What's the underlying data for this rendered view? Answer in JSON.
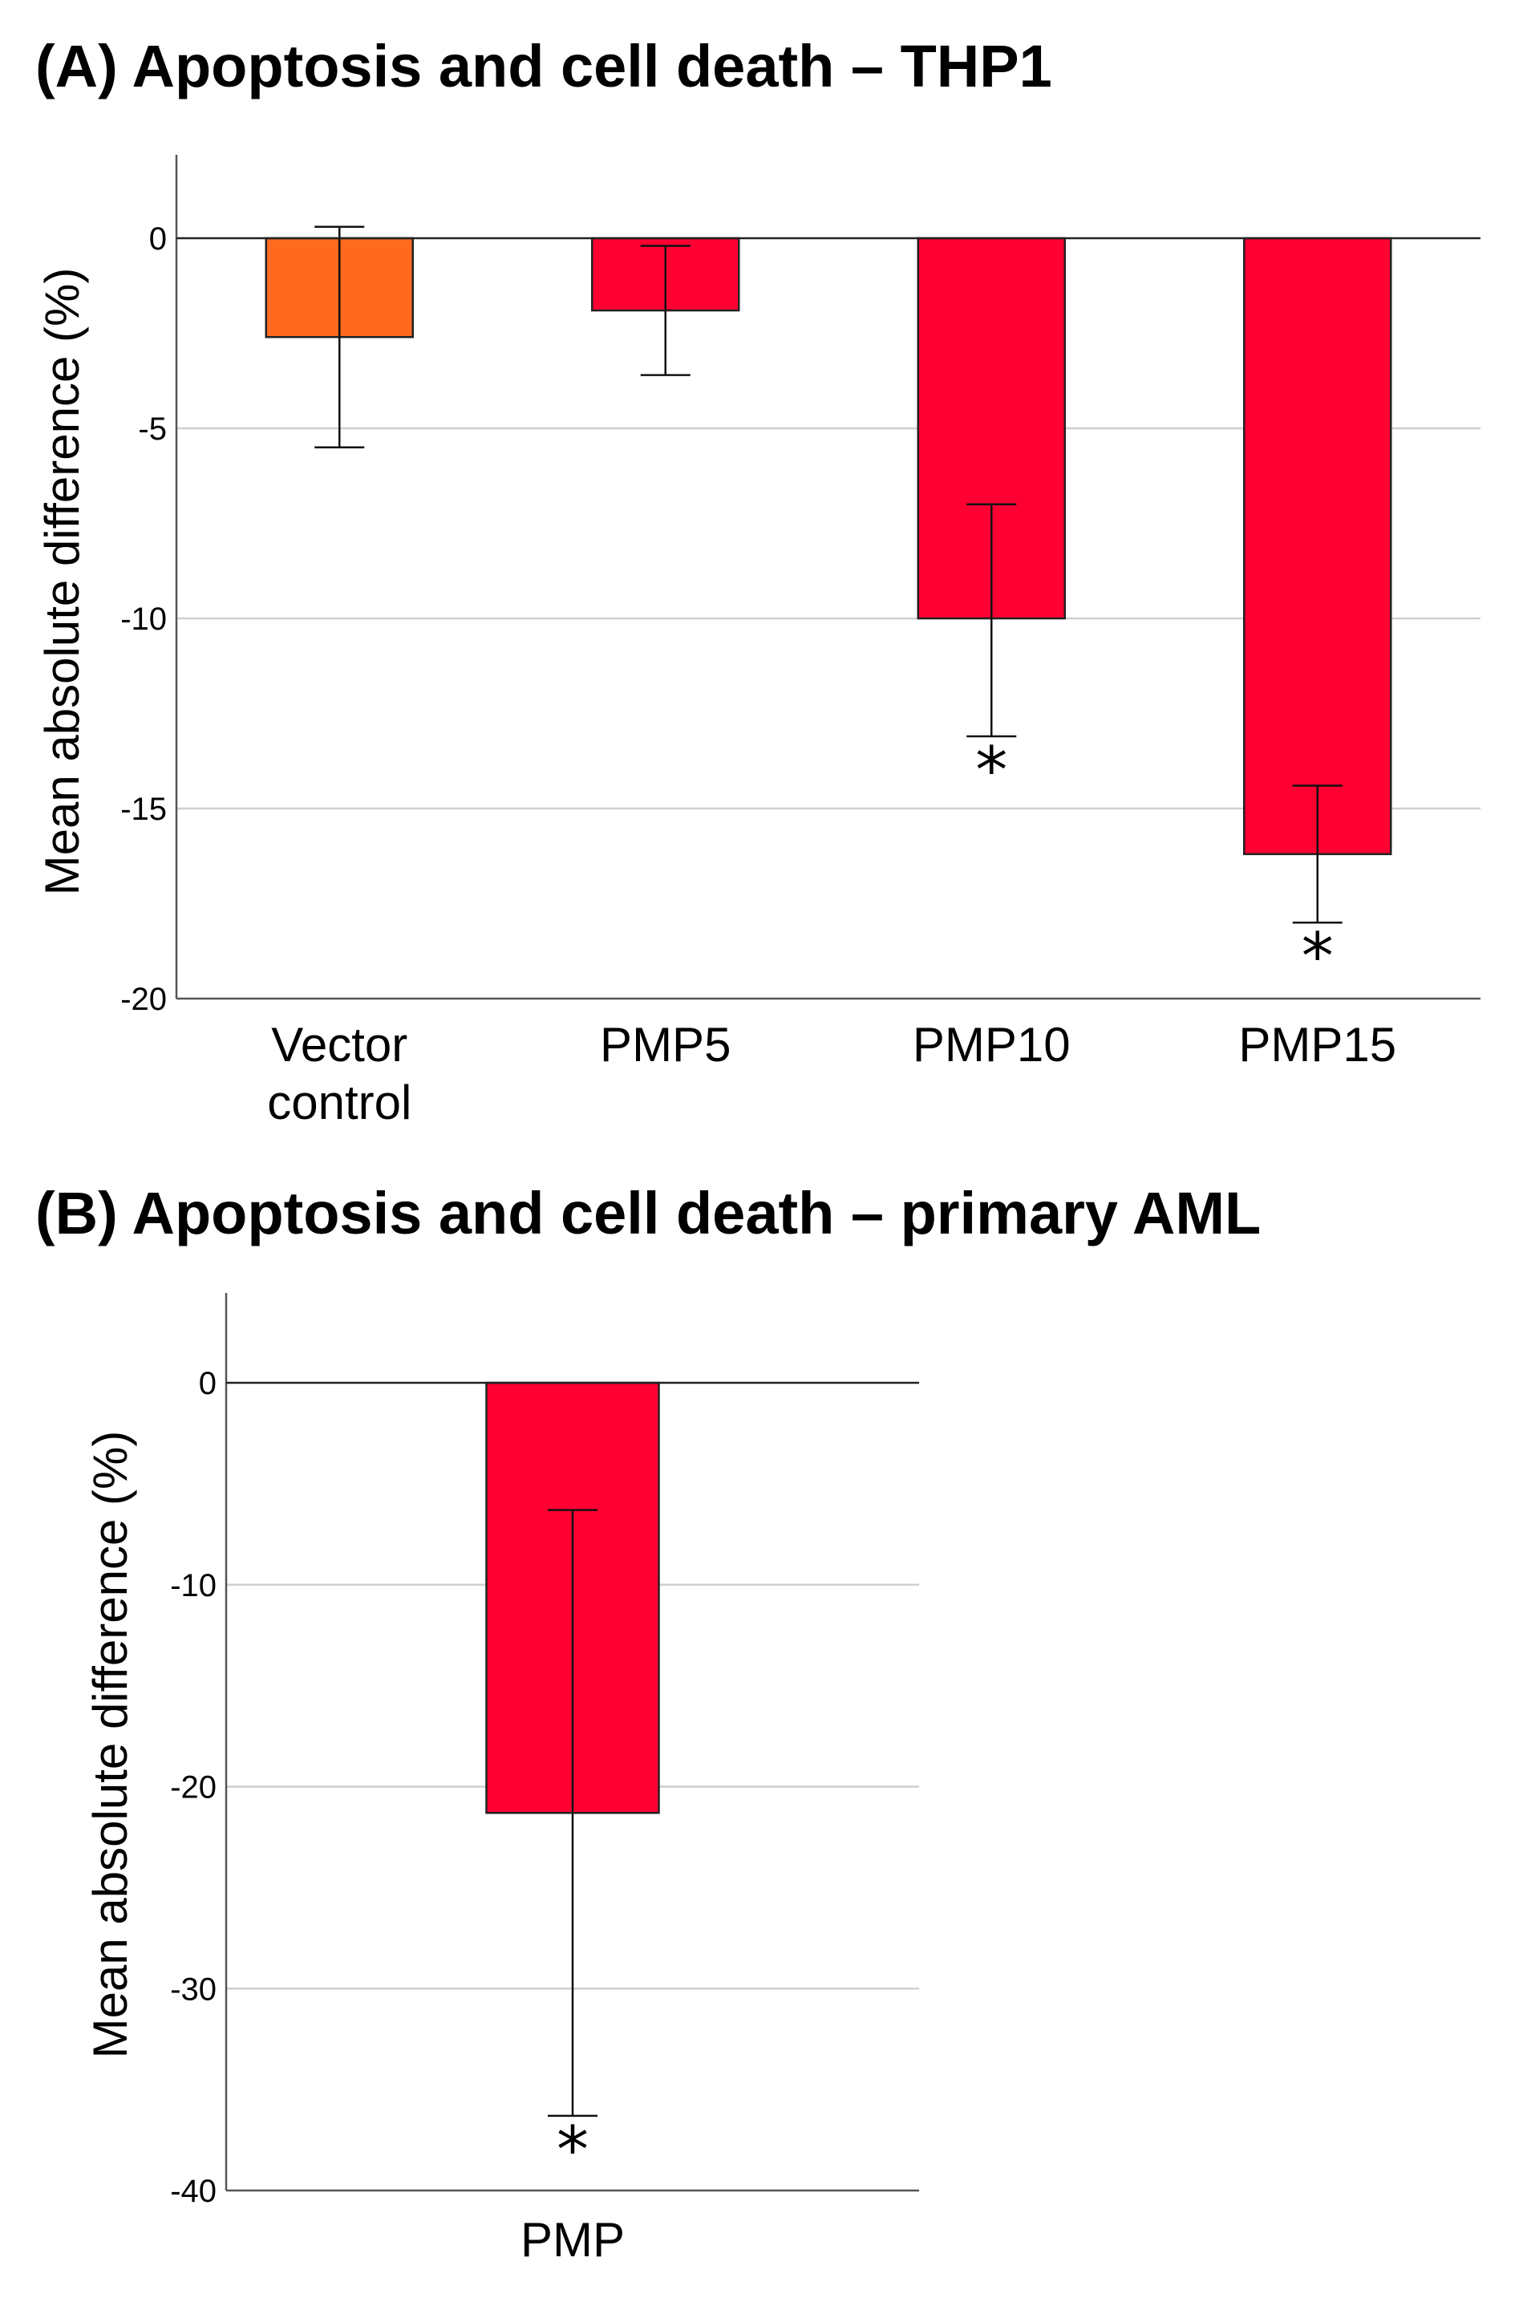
{
  "chart_data": [
    {
      "type": "bar",
      "title": "(A) Apoptosis and cell death – THP1",
      "ylabel": "Mean absolute difference (%)",
      "xlabel": "",
      "ylim": [
        -20,
        2
      ],
      "yticks": [
        0,
        -5,
        -10,
        -15,
        -20
      ],
      "ytick_labels": [
        "0",
        "-5",
        "-10",
        "-15",
        "-20"
      ],
      "grid": true,
      "categories": [
        [
          "Vector",
          "control"
        ],
        [
          "PMP5"
        ],
        [
          "PMP10"
        ],
        [
          "PMP15"
        ]
      ],
      "values": [
        -2.6,
        -1.9,
        -10.0,
        -16.2
      ],
      "error_low": [
        -5.5,
        -3.6,
        -13.1,
        -18.0
      ],
      "error_high": [
        0.3,
        -0.2,
        -7.0,
        -14.4
      ],
      "colors": [
        "#ff6a1f",
        "#ff0033",
        "#ff0033",
        "#ff0033"
      ],
      "significance": [
        "",
        "",
        "*",
        "*"
      ]
    },
    {
      "type": "bar",
      "title": "(B) Apoptosis and cell death – primary AML",
      "ylabel": "Mean absolute difference (%)",
      "xlabel": "",
      "ylim": [
        -40,
        4
      ],
      "yticks": [
        0,
        -10,
        -20,
        -30,
        -40
      ],
      "ytick_labels": [
        "0",
        "-10",
        "-20",
        "-30",
        "-40"
      ],
      "grid": true,
      "categories": [
        [
          "PMP"
        ]
      ],
      "values": [
        -21.3
      ],
      "error_low": [
        -36.3
      ],
      "error_high": [
        -6.3
      ],
      "colors": [
        "#ff0033"
      ],
      "significance": [
        "*"
      ]
    }
  ]
}
